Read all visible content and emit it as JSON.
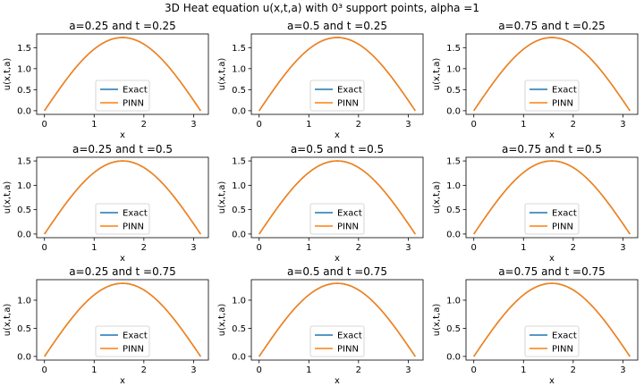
{
  "suptitle": "3D Heat equation u(x,t,a) with 0³ support points, alpha =1",
  "colors": {
    "exact": "#1f77b4",
    "pinn": "#ff7f0e",
    "frame": "#000000",
    "legend_border": "#cccccc"
  },
  "chart_data": [
    {
      "type": "line",
      "title": "a=0.25 and t =0.25",
      "xlabel": "x",
      "ylabel": "u(x,t,a)",
      "xlim": [
        -0.157,
        3.299
      ],
      "ylim": [
        -0.087,
        1.825
      ],
      "xticks": [
        0,
        1,
        2,
        3
      ],
      "yticks": [
        0.0,
        0.5,
        1.0,
        1.5
      ],
      "legend_placement": "lower center",
      "series": [
        {
          "name": "Exact",
          "function": "A*sin(x)",
          "amplitude": 1.74,
          "x_range": [
            0,
            3.1416
          ]
        },
        {
          "name": "PINN",
          "function": "A*sin(x)",
          "amplitude": 1.74,
          "x_range": [
            0,
            3.1416
          ]
        }
      ]
    },
    {
      "type": "line",
      "title": "a=0.5 and t =0.25",
      "xlabel": "x",
      "ylabel": "u(x,t,a)",
      "xlim": [
        -0.157,
        3.299
      ],
      "ylim": [
        -0.087,
        1.825
      ],
      "xticks": [
        0,
        1,
        2,
        3
      ],
      "yticks": [
        0.0,
        0.5,
        1.0,
        1.5
      ],
      "legend_placement": "lower center",
      "series": [
        {
          "name": "Exact",
          "function": "A*sin(x)",
          "amplitude": 1.74,
          "x_range": [
            0,
            3.1416
          ]
        },
        {
          "name": "PINN",
          "function": "A*sin(x)",
          "amplitude": 1.74,
          "x_range": [
            0,
            3.1416
          ]
        }
      ]
    },
    {
      "type": "line",
      "title": "a=0.75 and t =0.25",
      "xlabel": "x",
      "ylabel": "u(x,t,a)",
      "xlim": [
        -0.157,
        3.299
      ],
      "ylim": [
        -0.087,
        1.825
      ],
      "xticks": [
        0,
        1,
        2,
        3
      ],
      "yticks": [
        0.0,
        0.5,
        1.0,
        1.5
      ],
      "legend_placement": "lower center",
      "series": [
        {
          "name": "Exact",
          "function": "A*sin(x)",
          "amplitude": 1.74,
          "x_range": [
            0,
            3.1416
          ]
        },
        {
          "name": "PINN",
          "function": "A*sin(x)",
          "amplitude": 1.74,
          "x_range": [
            0,
            3.1416
          ]
        }
      ]
    },
    {
      "type": "line",
      "title": "a=0.25 and t =0.5",
      "xlabel": "x",
      "ylabel": "u(x,t,a)",
      "xlim": [
        -0.157,
        3.299
      ],
      "ylim": [
        -0.075,
        1.575
      ],
      "xticks": [
        0,
        1,
        2,
        3
      ],
      "yticks": [
        0.0,
        0.5,
        1.0,
        1.5
      ],
      "legend_placement": "lower center",
      "series": [
        {
          "name": "Exact",
          "function": "A*sin(x)",
          "amplitude": 1.5,
          "x_range": [
            0,
            3.1416
          ]
        },
        {
          "name": "PINN",
          "function": "A*sin(x)",
          "amplitude": 1.5,
          "x_range": [
            0,
            3.1416
          ]
        }
      ]
    },
    {
      "type": "line",
      "title": "a=0.5 and t =0.5",
      "xlabel": "x",
      "ylabel": "u(x,t,a)",
      "xlim": [
        -0.157,
        3.299
      ],
      "ylim": [
        -0.075,
        1.575
      ],
      "xticks": [
        0,
        1,
        2,
        3
      ],
      "yticks": [
        0.0,
        0.5,
        1.0,
        1.5
      ],
      "legend_placement": "lower center",
      "series": [
        {
          "name": "Exact",
          "function": "A*sin(x)",
          "amplitude": 1.5,
          "x_range": [
            0,
            3.1416
          ]
        },
        {
          "name": "PINN",
          "function": "A*sin(x)",
          "amplitude": 1.5,
          "x_range": [
            0,
            3.1416
          ]
        }
      ]
    },
    {
      "type": "line",
      "title": "a=0.75 and t =0.5",
      "xlabel": "x",
      "ylabel": "u(x,t,a)",
      "xlim": [
        -0.157,
        3.299
      ],
      "ylim": [
        -0.075,
        1.575
      ],
      "xticks": [
        0,
        1,
        2,
        3
      ],
      "yticks": [
        0.0,
        0.5,
        1.0,
        1.5
      ],
      "legend_placement": "lower center",
      "series": [
        {
          "name": "Exact",
          "function": "A*sin(x)",
          "amplitude": 1.5,
          "x_range": [
            0,
            3.1416
          ]
        },
        {
          "name": "PINN",
          "function": "A*sin(x)",
          "amplitude": 1.5,
          "x_range": [
            0,
            3.1416
          ]
        }
      ]
    },
    {
      "type": "line",
      "title": "a=0.25 and t =0.75",
      "xlabel": "x",
      "ylabel": "u(x,t,a)",
      "xlim": [
        -0.157,
        3.299
      ],
      "ylim": [
        -0.065,
        1.365
      ],
      "xticks": [
        0,
        1,
        2,
        3
      ],
      "yticks": [
        0.0,
        0.5,
        1.0
      ],
      "legend_placement": "lower center",
      "series": [
        {
          "name": "Exact",
          "function": "A*sin(x)",
          "amplitude": 1.3,
          "x_range": [
            0,
            3.1416
          ]
        },
        {
          "name": "PINN",
          "function": "A*sin(x)",
          "amplitude": 1.3,
          "x_range": [
            0,
            3.1416
          ]
        }
      ]
    },
    {
      "type": "line",
      "title": "a=0.5 and t =0.75",
      "xlabel": "x",
      "ylabel": "u(x,t,a)",
      "xlim": [
        -0.157,
        3.299
      ],
      "ylim": [
        -0.065,
        1.365
      ],
      "xticks": [
        0,
        1,
        2,
        3
      ],
      "yticks": [
        0.0,
        0.5,
        1.0
      ],
      "legend_placement": "lower center",
      "series": [
        {
          "name": "Exact",
          "function": "A*sin(x)",
          "amplitude": 1.3,
          "x_range": [
            0,
            3.1416
          ]
        },
        {
          "name": "PINN",
          "function": "A*sin(x)",
          "amplitude": 1.3,
          "x_range": [
            0,
            3.1416
          ]
        }
      ]
    },
    {
      "type": "line",
      "title": "a=0.75 and t =0.75",
      "xlabel": "x",
      "ylabel": "u(x,t,a)",
      "xlim": [
        -0.157,
        3.299
      ],
      "ylim": [
        -0.065,
        1.365
      ],
      "xticks": [
        0,
        1,
        2,
        3
      ],
      "yticks": [
        0.0,
        0.5,
        1.0
      ],
      "legend_placement": "lower center",
      "series": [
        {
          "name": "Exact",
          "function": "A*sin(x)",
          "amplitude": 1.3,
          "x_range": [
            0,
            3.1416
          ]
        },
        {
          "name": "PINN",
          "function": "A*sin(x)",
          "amplitude": 1.3,
          "x_range": [
            0,
            3.1416
          ]
        }
      ]
    }
  ]
}
